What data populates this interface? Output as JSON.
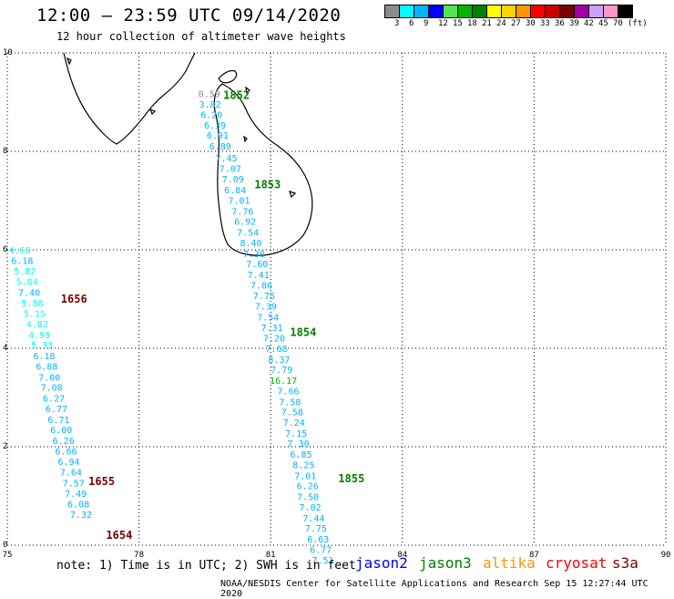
{
  "header": {
    "title": "12:00 – 23:59 UTC 09/14/2020",
    "subtitle": "12 hour collection of altimeter wave heights"
  },
  "legend": {
    "labels": [
      "3",
      "6",
      "9",
      "12",
      "15",
      "18",
      "21",
      "24",
      "27",
      "30",
      "33",
      "36",
      "39",
      "42",
      "45",
      "70",
      "(ft)"
    ],
    "colors": [
      "#8c8c8c",
      "#00ffff",
      "#00b4ff",
      "#0000ff",
      "#50e650",
      "#00b400",
      "#008000",
      "#ffff00",
      "#ffd200",
      "#ff9600",
      "#ff0000",
      "#c80000",
      "#780000",
      "#a000a0",
      "#c8a0ff",
      "#ff96c8",
      "#000000"
    ]
  },
  "axes": {
    "x_ticks": [
      "75",
      "78",
      "81",
      "84",
      "87",
      "90"
    ],
    "y_ticks": [
      "0",
      "2",
      "4",
      "6",
      "8",
      "10"
    ]
  },
  "passes": [
    {
      "label": "1852",
      "label_color": "#008000",
      "points": [
        {
          "lon": 79.6,
          "lat": 9.18,
          "v": "0.59",
          "c": "#8c8c8c"
        },
        {
          "lon": 79.62,
          "lat": 8.96,
          "v": "3.82",
          "c": "#00b4ff"
        },
        {
          "lon": 79.65,
          "lat": 8.75,
          "v": "6.20",
          "c": "#00b4ff"
        },
        {
          "lon": 79.73,
          "lat": 8.54,
          "v": "6.39",
          "c": "#00b4ff"
        },
        {
          "lon": 79.79,
          "lat": 8.33,
          "v": "6.91",
          "c": "#00b4ff"
        },
        {
          "lon": 79.85,
          "lat": 8.11,
          "v": "6.89",
          "c": "#00b4ff"
        }
      ],
      "label_pos": {
        "lon": 80.22,
        "lat": 9.14
      }
    },
    {
      "label": "1853",
      "label_color": "#008000",
      "points": [
        {
          "lon": 79.99,
          "lat": 7.87,
          "v": "7.45",
          "c": "#00b4ff"
        },
        {
          "lon": 80.08,
          "lat": 7.66,
          "v": "7.07",
          "c": "#00b4ff"
        },
        {
          "lon": 80.14,
          "lat": 7.44,
          "v": "7.09",
          "c": "#00b4ff"
        },
        {
          "lon": 80.19,
          "lat": 7.22,
          "v": "6.84",
          "c": "#00b4ff"
        },
        {
          "lon": 80.28,
          "lat": 7.01,
          "v": "7.01",
          "c": "#00b4ff"
        },
        {
          "lon": 80.36,
          "lat": 6.79,
          "v": "7.76",
          "c": "#00b4ff"
        },
        {
          "lon": 80.42,
          "lat": 6.58,
          "v": "6.92",
          "c": "#00b4ff"
        },
        {
          "lon": 80.48,
          "lat": 6.36,
          "v": "7.54",
          "c": "#00b4ff"
        },
        {
          "lon": 80.55,
          "lat": 6.15,
          "v": "8.40",
          "c": "#00b4ff"
        },
        {
          "lon": 80.62,
          "lat": 5.93,
          "v": "7.30",
          "c": "#00b4ff"
        },
        {
          "lon": 80.69,
          "lat": 5.72,
          "v": "7.60",
          "c": "#00b4ff"
        },
        {
          "lon": 80.72,
          "lat": 5.5,
          "v": "7.41",
          "c": "#00b4ff"
        },
        {
          "lon": 80.79,
          "lat": 5.29,
          "v": "7.86",
          "c": "#00b4ff"
        },
        {
          "lon": 80.85,
          "lat": 5.07,
          "v": "7.75",
          "c": "#00b4ff"
        },
        {
          "lon": 80.89,
          "lat": 4.86,
          "v": "7.39",
          "c": "#00b4ff"
        },
        {
          "lon": 80.94,
          "lat": 4.64,
          "v": "7.54",
          "c": "#00b4ff"
        },
        {
          "lon": 81.03,
          "lat": 4.43,
          "v": "7.31",
          "c": "#00b4ff"
        },
        {
          "lon": 81.08,
          "lat": 4.21,
          "v": "7.20",
          "c": "#00b4ff"
        },
        {
          "lon": 81.13,
          "lat": 4.0,
          "v": "7.68",
          "c": "#00b4ff"
        },
        {
          "lon": 81.19,
          "lat": 3.78,
          "v": "8.37",
          "c": "#00b4ff"
        }
      ],
      "label_pos": {
        "lon": 80.93,
        "lat": 7.32
      }
    },
    {
      "label": "1854",
      "label_color": "#008000",
      "points": [
        {
          "lon": 81.25,
          "lat": 3.57,
          "v": "7.79",
          "c": "#00b4ff"
        },
        {
          "lon": 81.29,
          "lat": 3.35,
          "v": "16.17",
          "c": "#00b400"
        },
        {
          "lon": 81.4,
          "lat": 3.14,
          "v": "7.66",
          "c": "#00b4ff"
        },
        {
          "lon": 81.44,
          "lat": 2.92,
          "v": "7.58",
          "c": "#00b4ff"
        },
        {
          "lon": 81.49,
          "lat": 2.71,
          "v": "7.58",
          "c": "#00b4ff"
        },
        {
          "lon": 81.53,
          "lat": 2.5,
          "v": "7.24",
          "c": "#00b4ff"
        },
        {
          "lon": 81.58,
          "lat": 2.28,
          "v": "7.15",
          "c": "#00b4ff"
        },
        {
          "lon": 81.63,
          "lat": 2.07,
          "v": "7.30",
          "c": "#00b4ff"
        },
        {
          "lon": 81.69,
          "lat": 1.85,
          "v": "6.85",
          "c": "#00b4ff"
        },
        {
          "lon": 81.75,
          "lat": 1.64,
          "v": "8.25",
          "c": "#00b4ff"
        },
        {
          "lon": 81.79,
          "lat": 1.42,
          "v": "7.01",
          "c": "#00b4ff"
        }
      ],
      "label_pos": {
        "lon": 81.74,
        "lat": 4.32
      }
    },
    {
      "label": "1855",
      "label_color": "#008000",
      "points": [
        {
          "lon": 81.84,
          "lat": 1.21,
          "v": "6.26",
          "c": "#00b4ff"
        },
        {
          "lon": 81.85,
          "lat": 0.99,
          "v": "7.50",
          "c": "#00b4ff"
        },
        {
          "lon": 81.9,
          "lat": 0.78,
          "v": "7.02",
          "c": "#00b4ff"
        },
        {
          "lon": 81.98,
          "lat": 0.56,
          "v": "7.44",
          "c": "#00b4ff"
        },
        {
          "lon": 82.03,
          "lat": 0.35,
          "v": "7.75",
          "c": "#00b4ff"
        },
        {
          "lon": 82.08,
          "lat": 0.13,
          "v": "6.63",
          "c": "#00b4ff"
        },
        {
          "lon": 82.14,
          "lat": -0.08,
          "v": "6.77",
          "c": "#00b4ff"
        },
        {
          "lon": 82.19,
          "lat": -0.3,
          "v": "7.51",
          "c": "#00b4ff"
        }
      ],
      "label_pos": {
        "lon": 82.84,
        "lat": 1.35
      }
    },
    {
      "label": "1656",
      "label_color": "#780000",
      "points": [
        {
          "lon": 75.28,
          "lat": 6.0,
          "v": "4.66",
          "c": "#00ffff"
        },
        {
          "lon": 75.34,
          "lat": 5.79,
          "v": "6.18",
          "c": "#00b4ff"
        },
        {
          "lon": 75.4,
          "lat": 5.57,
          "v": "5.82",
          "c": "#00ffff"
        },
        {
          "lon": 75.45,
          "lat": 5.36,
          "v": "5.84",
          "c": "#00ffff"
        },
        {
          "lon": 75.5,
          "lat": 5.14,
          "v": "7.40",
          "c": "#00b4ff"
        },
        {
          "lon": 75.57,
          "lat": 4.93,
          "v": "5.88",
          "c": "#00ffff"
        },
        {
          "lon": 75.62,
          "lat": 4.71,
          "v": "5.15",
          "c": "#00ffff"
        },
        {
          "lon": 75.68,
          "lat": 4.5,
          "v": "4.82",
          "c": "#00ffff"
        },
        {
          "lon": 75.73,
          "lat": 4.28,
          "v": "4.99",
          "c": "#00ffff"
        }
      ],
      "label_pos": {
        "lon": 76.52,
        "lat": 5.0
      }
    },
    {
      "label": "1655",
      "label_color": "#780000",
      "points": [
        {
          "lon": 75.79,
          "lat": 4.07,
          "v": "5.33",
          "c": "#00ffff"
        },
        {
          "lon": 75.84,
          "lat": 3.85,
          "v": "6.18",
          "c": "#00b4ff"
        },
        {
          "lon": 75.9,
          "lat": 3.64,
          "v": "6.88",
          "c": "#00b4ff"
        },
        {
          "lon": 75.96,
          "lat": 3.42,
          "v": "7.00",
          "c": "#00b4ff"
        },
        {
          "lon": 76.01,
          "lat": 3.21,
          "v": "7.08",
          "c": "#00b4ff"
        },
        {
          "lon": 76.06,
          "lat": 2.99,
          "v": "6.27",
          "c": "#00b4ff"
        },
        {
          "lon": 76.12,
          "lat": 2.78,
          "v": "6.77",
          "c": "#00b4ff"
        },
        {
          "lon": 76.17,
          "lat": 2.56,
          "v": "6.71",
          "c": "#00b4ff"
        },
        {
          "lon": 76.23,
          "lat": 2.35,
          "v": "6.00",
          "c": "#00b4ff"
        },
        {
          "lon": 76.28,
          "lat": 2.13,
          "v": "6.26",
          "c": "#00b4ff"
        },
        {
          "lon": 76.34,
          "lat": 1.92,
          "v": "6.66",
          "c": "#00b4ff"
        },
        {
          "lon": 76.4,
          "lat": 1.7,
          "v": "6.94",
          "c": "#00b4ff"
        }
      ],
      "label_pos": {
        "lon": 77.15,
        "lat": 1.3
      }
    },
    {
      "label": "1654",
      "label_color": "#780000",
      "points": [
        {
          "lon": 76.45,
          "lat": 1.49,
          "v": "7.64",
          "c": "#00b4ff"
        },
        {
          "lon": 76.51,
          "lat": 1.27,
          "v": "7.57",
          "c": "#00b4ff"
        },
        {
          "lon": 76.56,
          "lat": 1.06,
          "v": "7.49",
          "c": "#00b4ff"
        },
        {
          "lon": 76.62,
          "lat": 0.84,
          "v": "6.08",
          "c": "#00b4ff"
        },
        {
          "lon": 76.68,
          "lat": 0.63,
          "v": "7.32",
          "c": "#00b4ff"
        }
      ],
      "label_pos": {
        "lon": 77.55,
        "lat": 0.2
      }
    }
  ],
  "footer": {
    "note": "note: 1) Time is in UTC; 2) SWH is in feet",
    "satellites": [
      {
        "name": "jason2",
        "color": "#0000ff"
      },
      {
        "name": "jason3",
        "color": "#008000"
      },
      {
        "name": "altika",
        "color": "#ff9600"
      },
      {
        "name": "cryosat",
        "color": "#ff0000"
      },
      {
        "name": "s3a",
        "color": "#780000"
      }
    ],
    "credit": "NOAA/NESDIS Center for Satellite Applications and Research    Sep 15 12:27:44 UTC 2020"
  }
}
